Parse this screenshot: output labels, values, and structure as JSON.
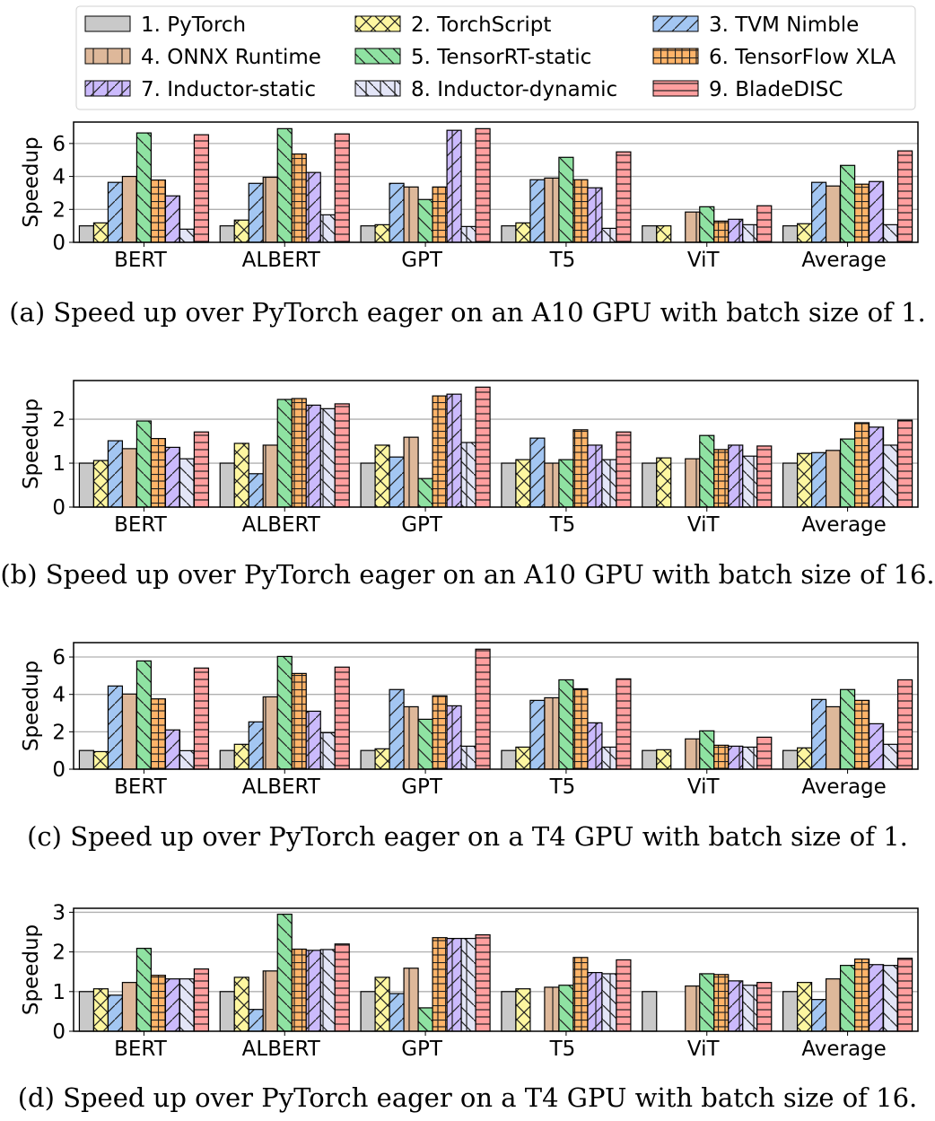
{
  "legend": {
    "placement": "top",
    "entries": [
      "1. PyTorch",
      "2. TorchScript",
      "3. TVM Nimble",
      "4. ONNX Runtime",
      "5. TensorRT-static",
      "6. TensorFlow XLA",
      "7. Inductor-static",
      "8. Inductor-dynamic",
      "9. BladeDISC"
    ]
  },
  "series_style": [
    {
      "color": "#c9c9c9",
      "hatch": "none"
    },
    {
      "color": "#fdf6a0",
      "hatch": "x"
    },
    {
      "color": "#a3c6f2",
      "hatch": "/"
    },
    {
      "color": "#deb89a",
      "hatch": "|"
    },
    {
      "color": "#8fe2a2",
      "hatch": "\\"
    },
    {
      "color": "#ffb469",
      "hatch": "+"
    },
    {
      "color": "#cbbafc",
      "hatch": "/|"
    },
    {
      "color": "#e3e5f7",
      "hatch": "\\|"
    },
    {
      "color": "#ff9f9f",
      "hatch": "-"
    }
  ],
  "chart_data": [
    {
      "type": "bar",
      "caption": "(a) Speed up over PyTorch eager on an A10 GPU with batch size of 1.",
      "ylabel": "Speedup",
      "ylim": [
        0,
        7.3
      ],
      "yticks": [
        0,
        2,
        4,
        6
      ],
      "grid": true,
      "categories": [
        "BERT",
        "ALBERT",
        "GPT",
        "T5",
        "ViT",
        "Average"
      ],
      "series": [
        {
          "name": "1. PyTorch",
          "values": [
            1.0,
            1.0,
            1.0,
            1.0,
            1.0,
            1.0
          ]
        },
        {
          "name": "2. TorchScript",
          "values": [
            1.18,
            1.35,
            1.07,
            1.18,
            1.0,
            1.13
          ]
        },
        {
          "name": "3. TVM Nimble",
          "values": [
            3.64,
            3.58,
            3.58,
            3.8,
            null,
            3.64
          ]
        },
        {
          "name": "4. ONNX Runtime",
          "values": [
            4.0,
            3.95,
            3.36,
            3.9,
            1.84,
            3.42
          ]
        },
        {
          "name": "5. TensorRT-static",
          "values": [
            6.64,
            6.9,
            2.6,
            5.16,
            2.16,
            4.67
          ]
        },
        {
          "name": "6. TensorFlow XLA",
          "values": [
            3.78,
            5.36,
            3.36,
            3.8,
            1.29,
            3.53
          ]
        },
        {
          "name": "7. Inductor-static",
          "values": [
            2.82,
            4.24,
            6.8,
            3.31,
            1.4,
            3.69
          ]
        },
        {
          "name": "8. Inductor-dynamic",
          "values": [
            0.8,
            1.67,
            0.96,
            0.85,
            1.07,
            1.07
          ]
        },
        {
          "name": "9. BladeDISC",
          "values": [
            6.53,
            6.58,
            6.9,
            5.49,
            2.22,
            5.55
          ]
        }
      ]
    },
    {
      "type": "bar",
      "caption": "(b) Speed up over PyTorch eager on an A10 GPU with batch size of 16.",
      "ylabel": "Speedup",
      "ylim": [
        0,
        2.88
      ],
      "yticks": [
        0,
        1,
        2
      ],
      "grid": true,
      "categories": [
        "BERT",
        "ALBERT",
        "GPT",
        "T5",
        "ViT",
        "Average"
      ],
      "series": [
        {
          "name": "1. PyTorch",
          "values": [
            1.0,
            1.0,
            1.0,
            1.0,
            1.0,
            1.0
          ]
        },
        {
          "name": "2. TorchScript",
          "values": [
            1.06,
            1.45,
            1.41,
            1.08,
            1.12,
            1.22
          ]
        },
        {
          "name": "3. TVM Nimble",
          "values": [
            1.51,
            0.76,
            1.14,
            1.57,
            null,
            1.24
          ]
        },
        {
          "name": "4. ONNX Runtime",
          "values": [
            1.33,
            1.41,
            1.59,
            1.0,
            1.1,
            1.29
          ]
        },
        {
          "name": "5. TensorRT-static",
          "values": [
            1.96,
            2.45,
            0.65,
            1.08,
            1.63,
            1.55
          ]
        },
        {
          "name": "6. TensorFlow XLA",
          "values": [
            1.56,
            2.47,
            2.53,
            1.76,
            1.31,
            1.92
          ]
        },
        {
          "name": "7. Inductor-static",
          "values": [
            1.36,
            2.32,
            2.57,
            1.41,
            1.41,
            1.82
          ]
        },
        {
          "name": "8. Inductor-dynamic",
          "values": [
            1.1,
            2.24,
            1.47,
            1.08,
            1.16,
            1.41
          ]
        },
        {
          "name": "9. BladeDISC",
          "values": [
            1.71,
            2.35,
            2.73,
            1.71,
            1.39,
            1.98
          ]
        }
      ]
    },
    {
      "type": "bar",
      "caption": "(c) Speed up over PyTorch eager on a T4 GPU with batch size of 1.",
      "ylabel": "Speedup",
      "ylim": [
        0,
        6.77
      ],
      "yticks": [
        0,
        2,
        4,
        6
      ],
      "grid": true,
      "categories": [
        "BERT",
        "ALBERT",
        "GPT",
        "T5",
        "ViT",
        "Average"
      ],
      "series": [
        {
          "name": "1. PyTorch",
          "values": [
            1.0,
            1.0,
            1.0,
            1.0,
            1.0,
            1.0
          ]
        },
        {
          "name": "2. TorchScript",
          "values": [
            0.94,
            1.33,
            1.09,
            1.18,
            1.04,
            1.14
          ]
        },
        {
          "name": "3. TVM Nimble",
          "values": [
            4.45,
            2.53,
            4.26,
            3.68,
            null,
            3.73
          ]
        },
        {
          "name": "4. ONNX Runtime",
          "values": [
            4.02,
            3.87,
            3.34,
            3.82,
            1.62,
            3.34
          ]
        },
        {
          "name": "5. TensorRT-static",
          "values": [
            5.79,
            6.03,
            2.67,
            4.78,
            2.05,
            4.26
          ]
        },
        {
          "name": "6. TensorFlow XLA",
          "values": [
            3.76,
            5.12,
            3.92,
            4.3,
            1.28,
            3.68
          ]
        },
        {
          "name": "7. Inductor-static",
          "values": [
            2.1,
            3.1,
            3.39,
            2.48,
            1.23,
            2.43
          ]
        },
        {
          "name": "8. Inductor-dynamic",
          "values": [
            0.99,
            1.95,
            1.23,
            1.18,
            1.18,
            1.33
          ]
        },
        {
          "name": "9. BladeDISC",
          "values": [
            5.41,
            5.46,
            6.42,
            4.83,
            1.71,
            4.78
          ]
        }
      ]
    },
    {
      "type": "bar",
      "caption": "(d) Speed up over PyTorch eager on a T4 GPU with batch size of 16.",
      "ylabel": "Speedup",
      "ylim": [
        0,
        3.1
      ],
      "yticks": [
        0,
        1,
        2,
        3
      ],
      "grid": true,
      "categories": [
        "BERT",
        "ALBERT",
        "GPT",
        "T5",
        "ViT",
        "Average"
      ],
      "series": [
        {
          "name": "1. PyTorch",
          "values": [
            1.0,
            1.0,
            1.0,
            1.0,
            1.0,
            1.0
          ]
        },
        {
          "name": "2. TorchScript",
          "values": [
            1.07,
            1.36,
            1.36,
            1.07,
            null,
            1.23
          ]
        },
        {
          "name": "3. TVM Nimble",
          "values": [
            0.91,
            0.55,
            0.95,
            null,
            null,
            0.8
          ]
        },
        {
          "name": "4. ONNX Runtime",
          "values": [
            1.23,
            1.52,
            1.59,
            1.11,
            1.14,
            1.32
          ]
        },
        {
          "name": "5. TensorRT-static",
          "values": [
            2.09,
            2.95,
            0.59,
            1.16,
            1.45,
            1.66
          ]
        },
        {
          "name": "6. TensorFlow XLA",
          "values": [
            1.41,
            2.07,
            2.36,
            1.86,
            1.43,
            1.82
          ]
        },
        {
          "name": "7. Inductor-static",
          "values": [
            1.32,
            2.04,
            2.34,
            1.48,
            1.27,
            1.68
          ]
        },
        {
          "name": "8. Inductor-dynamic",
          "values": [
            1.32,
            2.06,
            2.34,
            1.45,
            1.16,
            1.66
          ]
        },
        {
          "name": "9. BladeDISC",
          "values": [
            1.57,
            2.2,
            2.43,
            1.8,
            1.23,
            1.84
          ]
        }
      ]
    }
  ]
}
